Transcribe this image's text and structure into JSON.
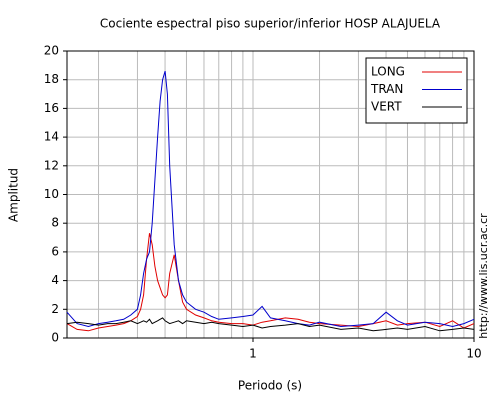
{
  "chart_data": {
    "type": "line",
    "title": "Cociente espectral piso superior/inferior  HOSP ALAJUELA",
    "x_label": "Periodo (s)",
    "y_label": "Amplitud",
    "annotation": "http://www.lis.ucr.ac.cr",
    "x": [
      0.144,
      0.16,
      0.18,
      0.2,
      0.22,
      0.24,
      0.26,
      0.28,
      0.3,
      0.31,
      0.32,
      0.33,
      0.34,
      0.35,
      0.36,
      0.37,
      0.38,
      0.39,
      0.4,
      0.41,
      0.42,
      0.44,
      0.46,
      0.48,
      0.5,
      0.55,
      0.6,
      0.65,
      0.7,
      0.8,
      0.9,
      1,
      1.1,
      1.2,
      1.4,
      1.6,
      1.8,
      2,
      2.5,
      3,
      3.5,
      4,
      4.5,
      5,
      6,
      7,
      8,
      9,
      10
    ],
    "series": [
      {
        "name": "LONG",
        "color": "#e00000",
        "values": [
          1.0,
          0.6,
          0.5,
          0.7,
          0.8,
          0.9,
          1.0,
          1.2,
          1.5,
          2.0,
          3.0,
          5.5,
          7.3,
          6.5,
          5.0,
          4.0,
          3.5,
          3.0,
          2.8,
          3.0,
          4.5,
          5.8,
          4.0,
          2.5,
          2.0,
          1.6,
          1.4,
          1.2,
          1.1,
          1.0,
          1.0,
          0.9,
          1.1,
          1.2,
          1.4,
          1.3,
          1.1,
          1.0,
          0.9,
          0.8,
          1.0,
          1.2,
          0.9,
          1.0,
          1.1,
          0.8,
          1.2,
          0.7,
          1.0
        ]
      },
      {
        "name": "TRAN",
        "color": "#0000cc",
        "values": [
          1.8,
          1.0,
          0.8,
          1.0,
          1.1,
          1.2,
          1.3,
          1.6,
          2.0,
          3.0,
          4.5,
          5.5,
          6.0,
          8.0,
          11.0,
          14.0,
          16.5,
          18.0,
          18.6,
          17.0,
          12.0,
          6.5,
          4.0,
          3.0,
          2.5,
          2.0,
          1.8,
          1.5,
          1.3,
          1.4,
          1.5,
          1.6,
          2.2,
          1.4,
          1.2,
          1.0,
          0.9,
          1.1,
          0.8,
          0.9,
          1.0,
          1.8,
          1.2,
          0.9,
          1.1,
          1.0,
          0.8,
          1.0,
          1.3
        ]
      },
      {
        "name": "VERT",
        "color": "#000000",
        "values": [
          1.0,
          1.1,
          1.0,
          0.9,
          1.0,
          1.0,
          1.1,
          1.2,
          1.0,
          1.1,
          1.2,
          1.1,
          1.3,
          1.0,
          1.1,
          1.2,
          1.3,
          1.4,
          1.2,
          1.1,
          1.0,
          1.1,
          1.2,
          1.0,
          1.2,
          1.1,
          1.0,
          1.1,
          1.0,
          0.9,
          0.8,
          0.9,
          0.7,
          0.8,
          0.9,
          1.0,
          0.8,
          0.9,
          0.6,
          0.7,
          0.5,
          0.6,
          0.7,
          0.6,
          0.8,
          0.5,
          0.6,
          0.7,
          0.6
        ]
      }
    ],
    "x_log_scale": true,
    "xlim": [
      0.144,
      10
    ],
    "xticks": [
      1,
      10
    ],
    "x_minor_ticks": [
      0.2,
      0.3,
      0.4,
      0.5,
      0.6,
      0.7,
      0.8,
      0.9,
      2,
      3,
      4,
      5,
      6,
      7,
      8,
      9
    ],
    "ylim": [
      0,
      20
    ],
    "yticks": [
      0,
      2,
      4,
      6,
      8,
      10,
      12,
      14,
      16,
      18,
      20
    ],
    "grid": true,
    "legend_position": "upper-right"
  }
}
